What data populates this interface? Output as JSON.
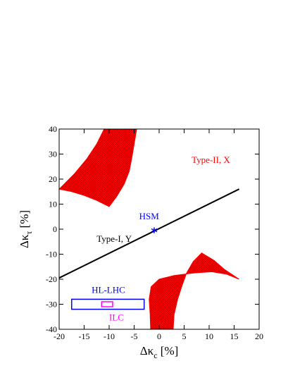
{
  "chart_data": {
    "type": "scatter",
    "xlabel": {
      "main": "Δκ",
      "sub": "c",
      "unit": " [%]"
    },
    "ylabel": {
      "main": "Δκ",
      "sub": "τ",
      "unit": " [%]"
    },
    "xlim": [
      -20,
      20
    ],
    "ylim": [
      -40,
      40
    ],
    "xticks": [
      -20,
      -15,
      -10,
      -5,
      0,
      5,
      10,
      15,
      20
    ],
    "yticks": [
      -40,
      -30,
      -20,
      -10,
      0,
      10,
      20,
      30,
      40
    ],
    "xtick_labels": [
      "-20",
      "-15",
      "-10",
      "-5",
      "0",
      "5",
      "10",
      "15",
      "20"
    ],
    "ytick_labels": [
      "-40",
      "-30",
      "-20",
      "-10",
      "0",
      "10",
      "20",
      "30",
      "40"
    ],
    "grid": false,
    "colors": {
      "type2_region": "#ff0000",
      "type1_line": "#000000",
      "hsm": "#0000ff",
      "hl_lhc": "#0000ff",
      "ilc": "#ff00ff"
    },
    "regions": [
      {
        "name": "Type-II, X upper region",
        "polygon": [
          [
            -20,
            16
          ],
          [
            -17,
            22
          ],
          [
            -14.5,
            28
          ],
          [
            -12.5,
            34
          ],
          [
            -11,
            40
          ],
          [
            -4.5,
            40
          ],
          [
            -5,
            34
          ],
          [
            -5.5,
            28
          ],
          [
            -6,
            23
          ],
          [
            -7,
            18
          ],
          [
            -8.5,
            13
          ],
          [
            -10,
            9
          ],
          [
            -12.5,
            11.5
          ],
          [
            -15,
            13.5
          ],
          [
            -17.5,
            15
          ]
        ]
      },
      {
        "name": "Type-II, X lower region",
        "polygon": [
          [
            16,
            -20
          ],
          [
            13,
            -16
          ],
          [
            11,
            -12.5
          ],
          [
            8.5,
            -9.5
          ],
          [
            6.8,
            -13
          ],
          [
            5.5,
            -17.5
          ],
          [
            4.5,
            -23
          ],
          [
            3.7,
            -28
          ],
          [
            3,
            -34
          ],
          [
            2.8,
            -40
          ],
          [
            -1.7,
            -40
          ],
          [
            -1.8,
            -34
          ],
          [
            -2,
            -28
          ],
          [
            -1.6,
            -23
          ],
          [
            0,
            -20
          ],
          [
            3,
            -18.5
          ],
          [
            7,
            -17.5
          ],
          [
            10.5,
            -17
          ],
          [
            13.5,
            -18
          ]
        ]
      }
    ],
    "series": [
      {
        "name": "Type-I, Y",
        "type": "line",
        "points": [
          [
            -20,
            -19.5
          ],
          [
            16,
            16
          ]
        ]
      }
    ],
    "markers": [
      {
        "name": "HSM",
        "symbol": "*",
        "point": [
          -1,
          -1
        ]
      }
    ],
    "boxes": [
      {
        "name": "HL-LHC",
        "x": [
          -17.5,
          -3
        ],
        "y": [
          -32,
          -28
        ]
      },
      {
        "name": "ILC",
        "x": [
          -11.5,
          -9.3
        ],
        "y": [
          -31,
          -29
        ]
      }
    ],
    "annotations": [
      {
        "text": "Type-II, X",
        "at": [
          6.5,
          26.5
        ],
        "color": "#ff0000"
      },
      {
        "text": "HSM",
        "at": [
          -4,
          4
        ],
        "color": "#0000ff"
      },
      {
        "text": "Type-I, Y",
        "at": [
          -12.5,
          -5
        ],
        "color": "#000000"
      },
      {
        "text": "HL-LHC",
        "at": [
          -13.5,
          -25.5
        ],
        "color": "#0000ff"
      },
      {
        "text": "ILC",
        "at": [
          -10,
          -36.5
        ],
        "color": "#ff00ff"
      }
    ]
  }
}
